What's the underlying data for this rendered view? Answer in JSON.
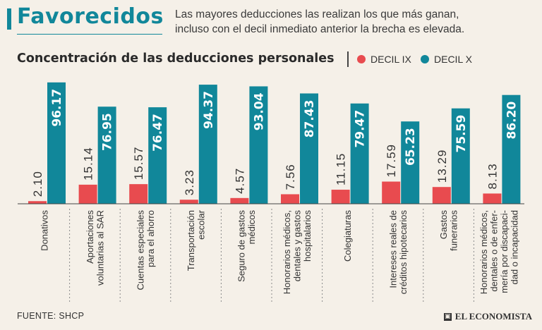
{
  "headline": "Favorecidos",
  "subtitle_line1": "Las mayores deducciones las realizan los que más ganan,",
  "subtitle_line2": "incluso con el decil inmediato anterior la brecha es elevada.",
  "source": "FUENTE: SHCP",
  "logo_text": "EL ECONOMISTA",
  "colors": {
    "accent": "#11879a",
    "decil_ix": "#e84b4f",
    "decil_x": "#11879a",
    "background": "#f5f0e8"
  },
  "chart_data": {
    "type": "bar",
    "title": "Concentración de las deducciones personales",
    "xlabel": "",
    "ylabel": "",
    "ylim": [
      0,
      100
    ],
    "categories": [
      [
        "Donativos"
      ],
      [
        "Aportaciones",
        "voluntarias al SAR"
      ],
      [
        "Cuentas especiales",
        "para el ahorro"
      ],
      [
        "Transportación",
        "escolar"
      ],
      [
        "Seguro de gastos",
        "médicos"
      ],
      [
        "Honorarios médicos,",
        "dentales y gastos",
        "hospitalarios"
      ],
      [
        "Colegiaturas"
      ],
      [
        "Intereses reales de",
        "créditos hipotecarios"
      ],
      [
        "Gastos",
        "funerarios"
      ],
      [
        "Honorarios médicos,",
        "dentales o de enfer-",
        "mería por discapaci-",
        "dad o incapacidad"
      ]
    ],
    "series": [
      {
        "name": "DECIL IX",
        "values": [
          2.1,
          15.14,
          15.57,
          3.23,
          4.57,
          7.56,
          11.15,
          17.59,
          13.29,
          8.13
        ],
        "labels": [
          "2.10",
          "15.14",
          "15.57",
          "3.23",
          "4.57",
          "7.56",
          "11.15",
          "17.59",
          "13.29",
          "8.13"
        ]
      },
      {
        "name": "DECIL X",
        "values": [
          96.17,
          76.95,
          76.47,
          94.37,
          93.04,
          87.43,
          79.47,
          65.23,
          75.59,
          86.2
        ],
        "labels": [
          "96.17",
          "76.95",
          "76.47",
          "94.37",
          "93.04",
          "87.43",
          "79.47",
          "65.23",
          "75.59",
          "86.20"
        ]
      }
    ]
  }
}
